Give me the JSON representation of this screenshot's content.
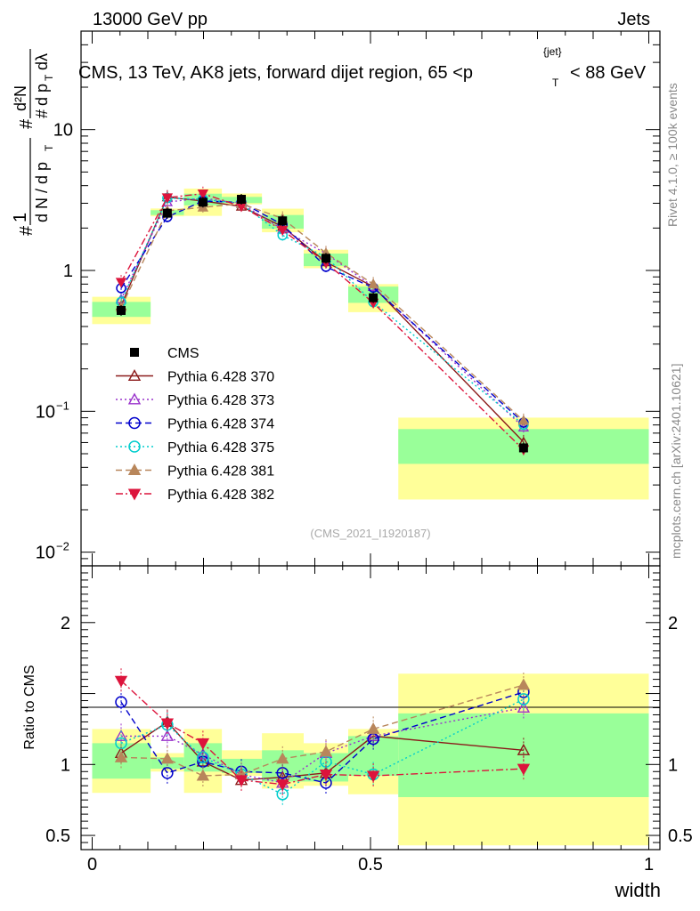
{
  "header": {
    "left": "13000 GeV pp",
    "right": "Jets"
  },
  "side_labels": {
    "rivet": "Rivet 4.1.0, ≥ 100k events",
    "mcplots": "mcplots.cern.ch [arXiv:2401.10621]"
  },
  "chart_data": {
    "type": "line",
    "title_prefix": "CMS, 13 TeV, AK8 jets, forward dijet region, 65 <p",
    "title_sub": "T",
    "title_sup": "{jet}",
    "title_suffix": "< 88 GeV",
    "xlabel": "width",
    "ylabel_ratio": "Ratio to CMS",
    "ylabel_main": "1/(dN/dpT) d²N/(dpT dλ)",
    "watermark": "(CMS_2021_I1920187)",
    "xlim": [
      -0.02,
      1.02
    ],
    "ylim_main": [
      0.008,
      50
    ],
    "ylim_ratio": [
      0.4,
      2.4
    ],
    "x_ticks": [
      {
        "v": 0,
        "label": "0"
      },
      {
        "v": 0.5,
        "label": "0.5"
      },
      {
        "v": 1,
        "label": "1"
      }
    ],
    "y_ticks_main": [
      {
        "v": 10,
        "label": "10"
      },
      {
        "v": 1,
        "label": "1"
      },
      {
        "v": 0.1,
        "base": "10",
        "exp": "−1"
      },
      {
        "v": 0.01,
        "base": "10",
        "exp": "−2"
      }
    ],
    "y_ticks_ratio": [
      {
        "v": 2,
        "label": "2"
      },
      {
        "v": 1,
        "label": "1"
      },
      {
        "v": 0.5,
        "label": "0.5"
      }
    ],
    "bins": [
      {
        "lo": 0.0,
        "hi": 0.105,
        "band_inner": [
          0.9,
          1.15
        ],
        "band_outer": [
          0.8,
          1.25
        ]
      },
      {
        "lo": 0.105,
        "hi": 0.165,
        "band_inner": [
          0.97,
          1.05
        ],
        "band_outer": [
          0.95,
          1.08
        ]
      },
      {
        "lo": 0.165,
        "hi": 0.233,
        "band_inner": [
          0.95,
          1.15
        ],
        "band_outer": [
          0.8,
          1.25
        ]
      },
      {
        "lo": 0.233,
        "hi": 0.305,
        "band_inner": [
          0.94,
          1.04
        ],
        "band_outer": [
          0.92,
          1.1
        ]
      },
      {
        "lo": 0.305,
        "hi": 0.38,
        "band_inner": [
          0.88,
          1.1
        ],
        "band_outer": [
          0.83,
          1.22
        ]
      },
      {
        "lo": 0.38,
        "hi": 0.46,
        "band_inner": [
          0.88,
          1.08
        ],
        "band_outer": [
          0.85,
          1.15
        ]
      },
      {
        "lo": 0.46,
        "hi": 0.55,
        "band_inner": [
          0.92,
          1.2
        ],
        "band_outer": [
          0.79,
          1.25
        ]
      },
      {
        "lo": 0.55,
        "hi": 1.0,
        "band_inner": [
          0.77,
          1.36
        ],
        "band_outer": [
          0.43,
          1.64
        ]
      }
    ],
    "cms": {
      "name": "CMS",
      "color": "#000000",
      "x": [
        0.052,
        0.135,
        0.199,
        0.268,
        0.342,
        0.42,
        0.505,
        0.775
      ],
      "y": [
        0.52,
        2.55,
        3.05,
        3.2,
        2.25,
        1.22,
        0.64,
        0.055
      ]
    },
    "series": [
      {
        "name": "Pythia 6.428 370",
        "color": "#8b1a1a",
        "dash": "",
        "marker": "triangle-open",
        "ratio": [
          1.08,
          1.3,
          1.02,
          0.89,
          0.91,
          0.94,
          1.2,
          1.1
        ]
      },
      {
        "name": "Pythia 6.428 373",
        "color": "#9932cc",
        "dash": "2,3",
        "marker": "triangle-open",
        "ratio": [
          1.2,
          1.2,
          1.07,
          0.93,
          0.87,
          1.08,
          1.2,
          1.4
        ]
      },
      {
        "name": "Pythia 6.428 374",
        "color": "#0000cc",
        "dash": "7,4",
        "marker": "circle-open",
        "ratio": [
          1.44,
          0.94,
          1.02,
          0.95,
          0.94,
          0.87,
          1.18,
          1.51
        ]
      },
      {
        "name": "Pythia 6.428 375",
        "color": "#00cdcd",
        "dash": "2,3",
        "marker": "circle-open",
        "ratio": [
          1.15,
          1.28,
          1.05,
          0.93,
          0.79,
          1.02,
          0.93,
          1.46
        ]
      },
      {
        "name": "Pythia 6.428 381",
        "color": "#b8865b",
        "dash": "7,4",
        "marker": "triangle-filled",
        "ratio": [
          1.05,
          1.04,
          0.92,
          0.93,
          1.04,
          1.09,
          1.25,
          1.56
        ]
      },
      {
        "name": "Pythia 6.428 382",
        "color": "#dc143c",
        "dash": "8,3,2,3",
        "marker": "triangle-down-filled",
        "ratio": [
          1.59,
          1.29,
          1.15,
          0.89,
          0.86,
          0.93,
          0.92,
          0.97
        ]
      }
    ]
  }
}
